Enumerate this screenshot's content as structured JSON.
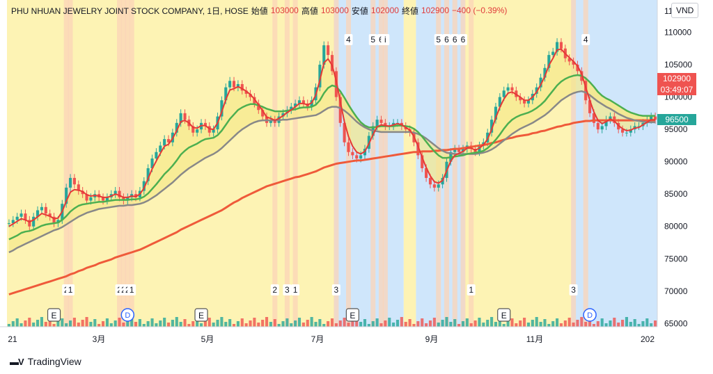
{
  "legend": {
    "symbol": "PHU NHUAN JEWELRY JOINT STOCK COMPANY, 1日, HOSE",
    "open_label": "始値",
    "open_value": "103000",
    "high_label": "高値",
    "high_value": "103000",
    "low_label": "安値",
    "low_value": "102000",
    "close_label": "終値",
    "close_value": "102900",
    "change": "−400 (−0.39%)"
  },
  "currency": "VND",
  "price_tags": [
    {
      "value": "102900",
      "sub": "03:49:07",
      "color": "#ef5350",
      "price": 102900
    },
    {
      "value": "96500",
      "sub": "",
      "color": "#26a69a",
      "price": 96500
    }
  ],
  "brand": "TradingView",
  "colors": {
    "up": "#26a69a",
    "down": "#ef5350",
    "ema_fast": "#e53935",
    "ema_mid": "#4caf50",
    "ema_slow": "#888888",
    "ema_long": "#ef5a3a",
    "ema_mid_bear": "#283593",
    "bull_zone": "#fdf3b4",
    "bear_zone": "#cfe6fb",
    "signal_band": "#fbd4b8"
  },
  "chart_data": {
    "type": "candlestick",
    "x_ticks": [
      "21",
      "3月",
      "5月",
      "7月",
      "9月",
      "11月",
      "202"
    ],
    "y_ticks": [
      65000,
      70000,
      75000,
      80000,
      85000,
      90000,
      95000,
      100000,
      105000,
      110000
    ],
    "y_top_tick_partial": "11",
    "ylim": [
      64500,
      115000
    ],
    "grid": false,
    "close_series": [
      80500,
      81000,
      81500,
      82000,
      81000,
      80000,
      81500,
      82500,
      83000,
      82000,
      81500,
      80500,
      81000,
      83500,
      86000,
      87500,
      86500,
      85500,
      85000,
      84000,
      84500,
      85000,
      84500,
      84000,
      84500,
      85000,
      85500,
      84500,
      84000,
      84500,
      85000,
      84500,
      85500,
      87000,
      89000,
      90500,
      91500,
      92500,
      93500,
      93000,
      94500,
      96000,
      97500,
      96500,
      95500,
      94500,
      95000,
      96000,
      95500,
      94500,
      95000,
      97000,
      99500,
      101500,
      102500,
      101500,
      102000,
      101000,
      100500,
      100000,
      99000,
      98000,
      97000,
      96000,
      96500,
      96000,
      97000,
      97500,
      98000,
      98500,
      99000,
      99500,
      99000,
      98500,
      99500,
      101500,
      105000,
      108000,
      106500,
      104000,
      100000,
      96000,
      93000,
      91500,
      91000,
      90500,
      91000,
      92000,
      94000,
      95500,
      96500,
      96000,
      95500,
      95500,
      96000,
      96000,
      95500,
      95000,
      94500,
      93000,
      91000,
      89000,
      87500,
      86500,
      86000,
      86500,
      87500,
      90000,
      91500,
      92000,
      91500,
      92000,
      92500,
      92000,
      91500,
      92500,
      93000,
      94500,
      96500,
      98500,
      100000,
      101000,
      101500,
      101000,
      100000,
      99500,
      99000,
      99500,
      100500,
      101500,
      103000,
      104500,
      106500,
      107000,
      108500,
      107500,
      106000,
      105500,
      105000,
      104000,
      102500,
      99500,
      97500,
      96000,
      95000,
      95500,
      96500,
      97000,
      96000,
      95000,
      94500,
      94500,
      95000,
      95500,
      95500,
      96000,
      96500,
      97000,
      96500
    ],
    "ema_fast": [
      80000,
      80400,
      80800,
      81200,
      81000,
      80700,
      81000,
      81500,
      82000,
      81800,
      81600,
      81200,
      81300,
      82300,
      83900,
      85300,
      85700,
      85600,
      85400,
      84900,
      84700,
      84800,
      84700,
      84500,
      84500,
      84700,
      85000,
      84800,
      84500,
      84500,
      84700,
      84600,
      85000,
      85900,
      87400,
      88900,
      90100,
      91300,
      92400,
      92700,
      93600,
      94800,
      96200,
      96400,
      96000,
      95300,
      95200,
      95600,
      95600,
      95100,
      95000,
      96000,
      97700,
      99600,
      101100,
      101300,
      101600,
      101300,
      100900,
      100400,
      99700,
      98800,
      97900,
      96900,
      96700,
      96400,
      96700,
      97100,
      97600,
      98000,
      98500,
      99000,
      99000,
      98800,
      99100,
      100300,
      102600,
      105300,
      105900,
      104900,
      102500,
      99300,
      96200,
      93900,
      92400,
      91500,
      91200,
      91600,
      92800,
      94200,
      95400,
      95700,
      95600,
      95500,
      95700,
      95900,
      95700,
      95300,
      94900,
      93900,
      92400,
      90700,
      89100,
      87800,
      86900,
      86700,
      87100,
      88600,
      90100,
      91000,
      91300,
      91600,
      92100,
      92100,
      91800,
      92100,
      92600,
      93500,
      95000,
      96800,
      98400,
      99700,
      100600,
      100800,
      100400,
      100000,
      99500,
      99500,
      100000,
      100800,
      101900,
      103200,
      104900,
      106000,
      107300,
      107400,
      106700,
      106100,
      105500,
      104800,
      103600,
      101500,
      99500,
      97700,
      96400,
      95900,
      96200,
      96600,
      96300,
      95600,
      95100,
      94800,
      94900,
      95200,
      95300,
      95700,
      96100,
      96500,
      96500
    ],
    "ema_mid": [
      78000,
      78300,
      78600,
      79000,
      79200,
      79300,
      79500,
      79800,
      80100,
      80300,
      80400,
      80500,
      80600,
      81000,
      81600,
      82300,
      82800,
      83200,
      83400,
      83500,
      83600,
      83700,
      83800,
      83800,
      83900,
      84000,
      84100,
      84100,
      84100,
      84100,
      84200,
      84200,
      84300,
      84600,
      85100,
      85800,
      86500,
      87300,
      88100,
      88700,
      89400,
      90200,
      91100,
      91700,
      92200,
      92500,
      92800,
      93200,
      93500,
      93600,
      93700,
      94100,
      94800,
      95700,
      96600,
      97300,
      98000,
      98400,
      98700,
      98900,
      98900,
      98700,
      98500,
      98200,
      98000,
      97800,
      97800,
      97800,
      97900,
      98000,
      98100,
      98300,
      98400,
      98400,
      98500,
      98800,
      99500,
      100600,
      101400,
      101800,
      101600,
      100900,
      99900,
      98800,
      97800,
      96900,
      96100,
      95600,
      95300,
      95300,
      95400,
      95500,
      95500,
      95500,
      95500,
      95600,
      95600,
      95500,
      95400,
      95100,
      94600,
      93900,
      93100,
      92300,
      91600,
      91000,
      90600,
      90600,
      90700,
      90800,
      90900,
      91000,
      91200,
      91300,
      91400,
      91500,
      91700,
      92100,
      92700,
      93400,
      94200,
      95100,
      95900,
      96500,
      96900,
      97200,
      97400,
      97600,
      97900,
      98300,
      98800,
      99400,
      100200,
      101000,
      101800,
      102400,
      102800,
      103100,
      103300,
      103400,
      103300,
      102900,
      102300,
      101600,
      100800,
      100200,
      99800,
      99500,
      99100,
      98700,
      98300,
      97900,
      97600,
      97400,
      97200,
      97100,
      97100,
      97100,
      97100
    ],
    "ema_slow": [
      76000,
      76300,
      76700,
      77000,
      77300,
      77600,
      77900,
      78200,
      78500,
      78800,
      79100,
      79400,
      79600,
      79900,
      80300,
      80700,
      81100,
      81500,
      81800,
      82100,
      82300,
      82500,
      82700,
      82800,
      82900,
      83000,
      83100,
      83200,
      83200,
      83300,
      83300,
      83400,
      83500,
      83700,
      84000,
      84400,
      84800,
      85300,
      85800,
      86300,
      86800,
      87400,
      88000,
      88500,
      89000,
      89400,
      89800,
      90200,
      90600,
      90900,
      91200,
      91600,
      92100,
      92700,
      93300,
      93900,
      94500,
      95000,
      95400,
      95800,
      96100,
      96300,
      96400,
      96400,
      96400,
      96400,
      96400,
      96500,
      96500,
      96600,
      96700,
      96800,
      96900,
      97000,
      97100,
      97200,
      97500,
      97900,
      98300,
      98500,
      98500,
      98300,
      97900,
      97400,
      96800,
      96200,
      95700,
      95300,
      95000,
      94800,
      94700,
      94600,
      94600,
      94600,
      94600,
      94600,
      94600,
      94600,
      94600,
      94500,
      94300,
      94000,
      93600,
      93100,
      92600,
      92100,
      91700,
      91400,
      91300,
      91200,
      91200,
      91200,
      91200,
      91200,
      91200,
      91300,
      91400,
      91600,
      91900,
      92300,
      92800,
      93300,
      93800,
      94300,
      94700,
      95100,
      95400,
      95700,
      96000,
      96400,
      96800,
      97200,
      97700,
      98300,
      98900,
      99500,
      99900,
      100300,
      100600,
      100800,
      100900,
      100700,
      100300,
      99800,
      99300,
      98900,
      98500,
      98200,
      97800,
      97400,
      97100,
      96800,
      96600,
      96400,
      96300,
      96200,
      96100,
      96100,
      96100
    ],
    "ema_long": [
      69500,
      69700,
      69900,
      70100,
      70300,
      70500,
      70700,
      70900,
      71100,
      71300,
      71500,
      71700,
      71900,
      72100,
      72300,
      72600,
      72800,
      73100,
      73300,
      73600,
      73800,
      74000,
      74300,
      74500,
      74700,
      74900,
      75200,
      75400,
      75600,
      75800,
      76000,
      76200,
      76400,
      76700,
      77000,
      77300,
      77600,
      77900,
      78200,
      78500,
      78800,
      79100,
      79500,
      79800,
      80100,
      80400,
      80700,
      81000,
      81300,
      81600,
      81900,
      82200,
      82500,
      82900,
      83300,
      83700,
      84000,
      84400,
      84700,
      85000,
      85300,
      85600,
      85900,
      86200,
      86400,
      86600,
      86800,
      87000,
      87200,
      87400,
      87600,
      87700,
      87900,
      88100,
      88300,
      88500,
      88800,
      89100,
      89300,
      89500,
      89700,
      89800,
      89900,
      90000,
      90100,
      90200,
      90200,
      90300,
      90400,
      90500,
      90600,
      90700,
      90800,
      90900,
      91000,
      91100,
      91200,
      91300,
      91400,
      91500,
      91500,
      91600,
      91600,
      91600,
      91700,
      91700,
      91800,
      91800,
      91900,
      92000,
      92000,
      92100,
      92200,
      92300,
      92400,
      92500,
      92600,
      92700,
      92900,
      93000,
      93200,
      93400,
      93600,
      93700,
      93900,
      94000,
      94100,
      94200,
      94400,
      94500,
      94700,
      94800,
      95000,
      95200,
      95400,
      95500,
      95700,
      95800,
      96000,
      96100,
      96200,
      96300,
      96300,
      96400,
      96400,
      96400,
      96400,
      96400,
      96400,
      96400,
      96400,
      96400,
      96400,
      96400,
      96400,
      96400,
      96400,
      96400,
      96400
    ],
    "zones": [
      {
        "from": 0,
        "to": 80,
        "kind": "bull"
      },
      {
        "from": 80,
        "to": 97,
        "kind": "bear"
      },
      {
        "from": 97,
        "to": 100,
        "kind": "bull"
      },
      {
        "from": 100,
        "to": 112,
        "kind": "bear"
      },
      {
        "from": 112,
        "to": 138,
        "kind": "bull"
      },
      {
        "from": 138,
        "to": 160,
        "kind": "bear"
      }
    ],
    "top_markers": [
      {
        "i": 83,
        "text": "4"
      },
      {
        "i": 89,
        "text": "5"
      },
      {
        "i": 91,
        "text": "6"
      },
      {
        "i": 92,
        "text": "i"
      },
      {
        "i": 105,
        "text": "5"
      },
      {
        "i": 107,
        "text": "6"
      },
      {
        "i": 109,
        "text": "6"
      },
      {
        "i": 111,
        "text": "6"
      },
      {
        "i": 141,
        "text": "4"
      }
    ],
    "bottom_markers": [
      {
        "i": 14,
        "text": "2"
      },
      {
        "i": 15,
        "text": "1"
      },
      {
        "i": 27,
        "text": "2"
      },
      {
        "i": 28,
        "text": "2"
      },
      {
        "i": 29,
        "text": "2"
      },
      {
        "i": 30,
        "text": "1"
      },
      {
        "i": 65,
        "text": "2"
      },
      {
        "i": 68,
        "text": "3"
      },
      {
        "i": 70,
        "text": "1"
      },
      {
        "i": 80,
        "text": "3"
      },
      {
        "i": 113,
        "text": "1"
      },
      {
        "i": 138,
        "text": "3"
      }
    ],
    "event_markers": [
      {
        "i": 11,
        "text": "E",
        "kind": "earnings"
      },
      {
        "i": 29,
        "text": "D",
        "kind": "dividend"
      },
      {
        "i": 47,
        "text": "E",
        "kind": "earnings"
      },
      {
        "i": 84,
        "text": "E",
        "kind": "earnings"
      },
      {
        "i": 121,
        "text": "E",
        "kind": "earnings"
      },
      {
        "i": 142,
        "text": "D",
        "kind": "dividend"
      }
    ]
  }
}
